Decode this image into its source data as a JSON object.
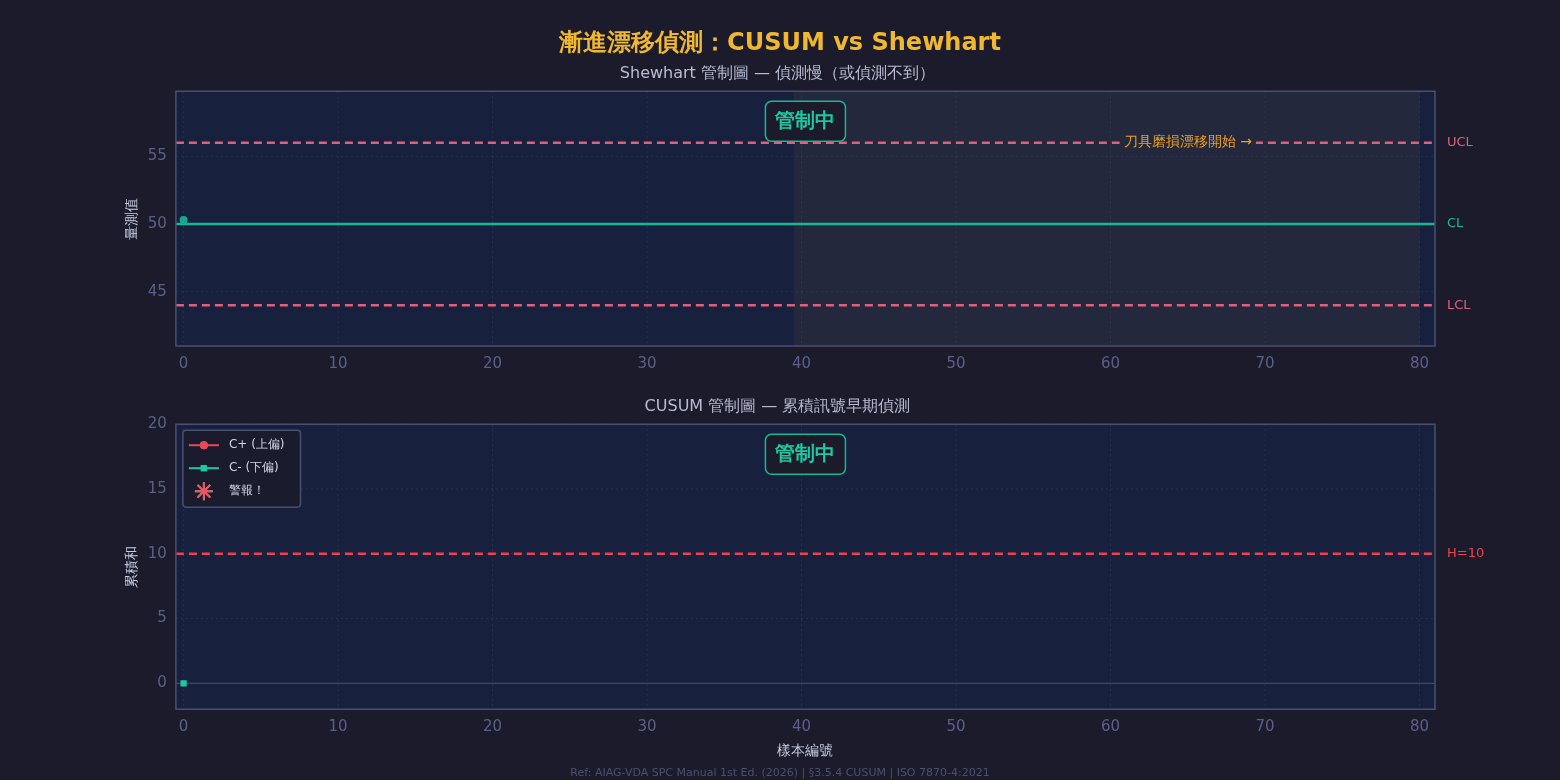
{
  "chart_data": [
    {
      "type": "line",
      "title": "漸進漂移偵測：CUSUM vs Shewhart",
      "subtitle": "Shewhart 管制圖 — 偵測慢（或偵測不到）",
      "ylabel": "量測值",
      "x": [
        0
      ],
      "series": [
        {
          "color": "#1aa88c",
          "values": [
            50.3
          ],
          "marker": "circle"
        }
      ],
      "xlim": [
        -0.5,
        81
      ],
      "xticks": [
        0,
        10,
        20,
        30,
        40,
        50,
        60,
        70,
        80
      ],
      "ylim": [
        41,
        59.8
      ],
      "yticks": [
        45,
        50,
        55
      ],
      "ref_lines": [
        {
          "axis": "y",
          "value": 56,
          "label": "UCL",
          "color": "#e0607a",
          "line_style": "dashed"
        },
        {
          "axis": "y",
          "value": 50,
          "label": "CL",
          "color": "#14b894",
          "line_style": "solid"
        },
        {
          "axis": "y",
          "value": 44,
          "label": "LCL",
          "color": "#e0607a",
          "line_style": "dashed"
        }
      ],
      "bands": [
        {
          "axis": "x",
          "from": 39.5,
          "to": 80,
          "color": "#23283d"
        }
      ],
      "annotations": [
        "管制中",
        {
          "text": "刀具磨損漂移開始 →",
          "x": 65,
          "y": 56
        }
      ],
      "grid": true,
      "legend": false
    },
    {
      "type": "line",
      "title": "CUSUM 管制圖 — 累積訊號早期偵測",
      "xlabel": "樣本編號",
      "ylabel": "累積和",
      "x": [
        0
      ],
      "series": [
        {
          "name": "C+ (上偏)",
          "color": "#e8485a",
          "values": [
            null
          ],
          "marker": "circle"
        },
        {
          "name": "C- (下偏)",
          "color": "#1ec8a0",
          "values": [
            0
          ],
          "marker": "square"
        },
        {
          "name": "警報！",
          "type": "scatter",
          "color": "#ff4d5e",
          "values": [
            null
          ],
          "marker": "star"
        }
      ],
      "xlim": [
        -0.5,
        81
      ],
      "xticks": [
        0,
        10,
        20,
        30,
        40,
        50,
        60,
        70,
        80
      ],
      "ylim": [
        -2,
        20
      ],
      "yticks": [
        0,
        5,
        10,
        15,
        20
      ],
      "ref_lines": [
        {
          "axis": "y",
          "value": 10,
          "label": "H=10",
          "color": "#f0404f",
          "line_style": "dashed"
        },
        {
          "axis": "y",
          "value": 0,
          "color": "#4a5070",
          "line_style": "solid"
        }
      ],
      "annotations": [
        "管制中",
        "Ref: AIAG-VDA SPC Manual 1st Ed. (2026) | §3.5.4 CUSUM | ISO 7870-4:2021"
      ],
      "grid": true,
      "legend": "top left"
    }
  ]
}
